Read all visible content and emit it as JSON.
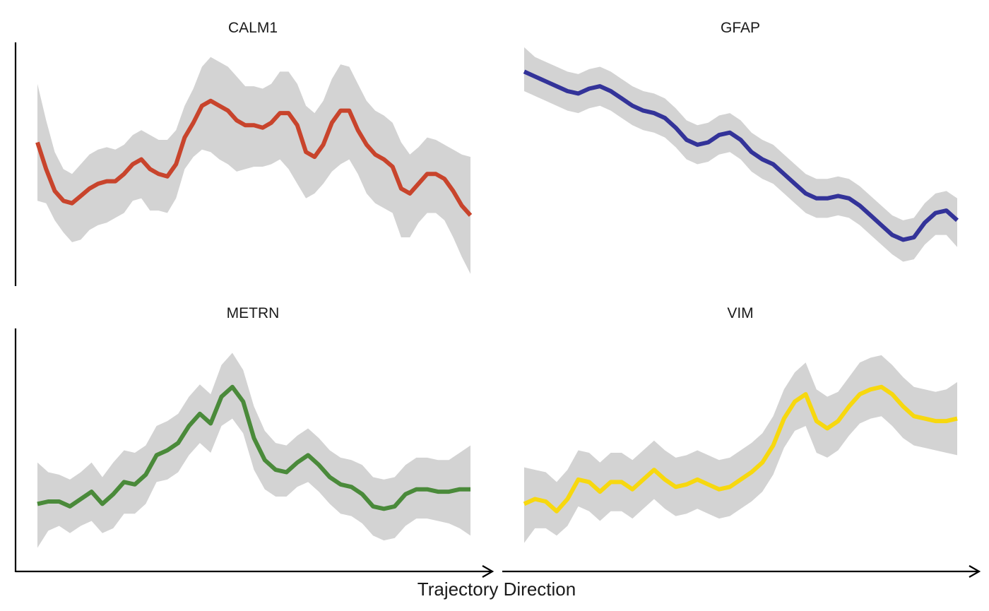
{
  "colors": {
    "ribbon": "#d3d3d3",
    "axis": "#000000"
  },
  "chart_data": {
    "type": "line",
    "xlabel": "Trajectory Direction",
    "ylabel": "",
    "x_range": [
      0,
      1
    ],
    "y_range": [
      0,
      1
    ],
    "legend": "none",
    "grid": false,
    "panels": [
      {
        "title": "CALM1",
        "color": "#c8442c",
        "x": [
          0.0,
          0.02,
          0.04,
          0.06,
          0.08,
          0.1,
          0.12,
          0.14,
          0.16,
          0.18,
          0.2,
          0.22,
          0.24,
          0.26,
          0.28,
          0.3,
          0.32,
          0.34,
          0.36,
          0.38,
          0.4,
          0.42,
          0.44,
          0.46,
          0.48,
          0.5,
          0.52,
          0.54,
          0.56,
          0.58,
          0.6,
          0.62,
          0.64,
          0.66,
          0.68,
          0.7,
          0.72,
          0.74,
          0.76,
          0.78,
          0.8,
          0.82,
          0.84,
          0.86,
          0.88,
          0.9,
          0.92,
          0.94,
          0.96,
          0.98,
          1.0
        ],
        "y": [
          0.59,
          0.48,
          0.39,
          0.35,
          0.34,
          0.37,
          0.4,
          0.42,
          0.43,
          0.43,
          0.46,
          0.5,
          0.52,
          0.48,
          0.46,
          0.45,
          0.5,
          0.61,
          0.67,
          0.74,
          0.76,
          0.74,
          0.72,
          0.68,
          0.66,
          0.66,
          0.65,
          0.67,
          0.71,
          0.71,
          0.66,
          0.55,
          0.53,
          0.58,
          0.67,
          0.72,
          0.72,
          0.64,
          0.58,
          0.54,
          0.52,
          0.49,
          0.4,
          0.38,
          0.42,
          0.46,
          0.46,
          0.44,
          0.39,
          0.33,
          0.29
        ],
        "lower": [
          0.35,
          0.34,
          0.27,
          0.22,
          0.18,
          0.19,
          0.23,
          0.25,
          0.26,
          0.28,
          0.3,
          0.35,
          0.36,
          0.31,
          0.31,
          0.3,
          0.36,
          0.48,
          0.53,
          0.56,
          0.55,
          0.52,
          0.5,
          0.47,
          0.48,
          0.49,
          0.49,
          0.5,
          0.52,
          0.48,
          0.42,
          0.36,
          0.38,
          0.42,
          0.47,
          0.5,
          0.52,
          0.46,
          0.38,
          0.34,
          0.32,
          0.3,
          0.2,
          0.2,
          0.26,
          0.3,
          0.3,
          0.27,
          0.2,
          0.12,
          0.05
        ],
        "upper": [
          0.83,
          0.68,
          0.55,
          0.48,
          0.46,
          0.5,
          0.54,
          0.56,
          0.57,
          0.56,
          0.58,
          0.62,
          0.64,
          0.62,
          0.6,
          0.6,
          0.64,
          0.74,
          0.81,
          0.9,
          0.94,
          0.92,
          0.9,
          0.86,
          0.82,
          0.82,
          0.81,
          0.83,
          0.88,
          0.88,
          0.83,
          0.74,
          0.71,
          0.76,
          0.85,
          0.91,
          0.9,
          0.83,
          0.76,
          0.72,
          0.7,
          0.67,
          0.59,
          0.54,
          0.57,
          0.61,
          0.6,
          0.58,
          0.56,
          0.54,
          0.53
        ]
      },
      {
        "title": "GFAP",
        "color": "#333399",
        "x": [
          0.0,
          0.025,
          0.05,
          0.075,
          0.1,
          0.125,
          0.15,
          0.175,
          0.2,
          0.225,
          0.25,
          0.275,
          0.3,
          0.325,
          0.35,
          0.375,
          0.4,
          0.425,
          0.45,
          0.475,
          0.5,
          0.525,
          0.55,
          0.575,
          0.6,
          0.625,
          0.65,
          0.675,
          0.7,
          0.725,
          0.75,
          0.775,
          0.8,
          0.825,
          0.85,
          0.875,
          0.9,
          0.925,
          0.95,
          0.975,
          1.0
        ],
        "y": [
          0.88,
          0.86,
          0.84,
          0.82,
          0.8,
          0.79,
          0.81,
          0.82,
          0.8,
          0.77,
          0.74,
          0.72,
          0.71,
          0.69,
          0.65,
          0.6,
          0.58,
          0.59,
          0.62,
          0.63,
          0.6,
          0.55,
          0.52,
          0.5,
          0.46,
          0.42,
          0.38,
          0.36,
          0.36,
          0.37,
          0.36,
          0.33,
          0.29,
          0.25,
          0.21,
          0.19,
          0.2,
          0.26,
          0.3,
          0.31,
          0.27
        ],
        "lower": [
          0.8,
          0.78,
          0.76,
          0.74,
          0.72,
          0.71,
          0.73,
          0.74,
          0.72,
          0.69,
          0.66,
          0.64,
          0.63,
          0.61,
          0.57,
          0.52,
          0.5,
          0.51,
          0.54,
          0.55,
          0.52,
          0.47,
          0.44,
          0.42,
          0.38,
          0.34,
          0.3,
          0.28,
          0.28,
          0.29,
          0.28,
          0.25,
          0.21,
          0.17,
          0.13,
          0.1,
          0.11,
          0.17,
          0.21,
          0.21,
          0.16
        ],
        "upper": [
          0.98,
          0.94,
          0.92,
          0.9,
          0.88,
          0.87,
          0.89,
          0.9,
          0.88,
          0.85,
          0.82,
          0.8,
          0.79,
          0.77,
          0.73,
          0.68,
          0.66,
          0.67,
          0.7,
          0.71,
          0.68,
          0.63,
          0.6,
          0.58,
          0.54,
          0.5,
          0.46,
          0.44,
          0.44,
          0.45,
          0.44,
          0.41,
          0.37,
          0.33,
          0.29,
          0.27,
          0.28,
          0.34,
          0.38,
          0.39,
          0.36
        ]
      },
      {
        "title": "METRN",
        "color": "#4a8a3a",
        "x": [
          0.0,
          0.025,
          0.05,
          0.075,
          0.1,
          0.125,
          0.15,
          0.175,
          0.2,
          0.225,
          0.25,
          0.275,
          0.3,
          0.325,
          0.35,
          0.375,
          0.4,
          0.425,
          0.45,
          0.475,
          0.5,
          0.525,
          0.55,
          0.575,
          0.6,
          0.625,
          0.65,
          0.675,
          0.7,
          0.725,
          0.75,
          0.775,
          0.8,
          0.825,
          0.85,
          0.875,
          0.9,
          0.925,
          0.95,
          0.975,
          1.0
        ],
        "y": [
          0.28,
          0.29,
          0.29,
          0.27,
          0.3,
          0.33,
          0.28,
          0.32,
          0.37,
          0.36,
          0.4,
          0.48,
          0.5,
          0.53,
          0.6,
          0.65,
          0.61,
          0.72,
          0.76,
          0.7,
          0.55,
          0.46,
          0.42,
          0.41,
          0.45,
          0.48,
          0.44,
          0.39,
          0.36,
          0.35,
          0.32,
          0.27,
          0.26,
          0.27,
          0.32,
          0.34,
          0.34,
          0.33,
          0.33,
          0.34,
          0.34
        ],
        "lower": [
          0.1,
          0.17,
          0.19,
          0.16,
          0.19,
          0.21,
          0.16,
          0.18,
          0.24,
          0.24,
          0.28,
          0.37,
          0.38,
          0.41,
          0.48,
          0.53,
          0.49,
          0.6,
          0.63,
          0.57,
          0.42,
          0.34,
          0.31,
          0.31,
          0.35,
          0.37,
          0.33,
          0.28,
          0.24,
          0.23,
          0.2,
          0.15,
          0.13,
          0.14,
          0.19,
          0.22,
          0.22,
          0.21,
          0.2,
          0.18,
          0.15
        ],
        "upper": [
          0.45,
          0.41,
          0.4,
          0.38,
          0.41,
          0.45,
          0.39,
          0.45,
          0.5,
          0.49,
          0.52,
          0.6,
          0.62,
          0.65,
          0.72,
          0.77,
          0.73,
          0.85,
          0.9,
          0.83,
          0.68,
          0.58,
          0.53,
          0.52,
          0.56,
          0.59,
          0.55,
          0.5,
          0.47,
          0.46,
          0.44,
          0.39,
          0.38,
          0.39,
          0.44,
          0.47,
          0.47,
          0.46,
          0.46,
          0.49,
          0.52
        ]
      },
      {
        "title": "VIM",
        "color": "#f7d80f",
        "x": [
          0.0,
          0.025,
          0.05,
          0.075,
          0.1,
          0.125,
          0.15,
          0.175,
          0.2,
          0.225,
          0.25,
          0.275,
          0.3,
          0.325,
          0.35,
          0.375,
          0.4,
          0.425,
          0.45,
          0.475,
          0.5,
          0.525,
          0.55,
          0.575,
          0.6,
          0.625,
          0.65,
          0.675,
          0.7,
          0.725,
          0.75,
          0.775,
          0.8,
          0.825,
          0.85,
          0.875,
          0.9,
          0.925,
          0.95,
          0.975,
          1.0
        ],
        "y": [
          0.28,
          0.3,
          0.29,
          0.25,
          0.3,
          0.38,
          0.37,
          0.33,
          0.37,
          0.37,
          0.34,
          0.38,
          0.42,
          0.38,
          0.35,
          0.36,
          0.38,
          0.36,
          0.34,
          0.35,
          0.38,
          0.41,
          0.45,
          0.52,
          0.63,
          0.7,
          0.73,
          0.62,
          0.59,
          0.62,
          0.68,
          0.73,
          0.75,
          0.76,
          0.73,
          0.68,
          0.64,
          0.63,
          0.62,
          0.62,
          0.63
        ],
        "lower": [
          0.12,
          0.18,
          0.18,
          0.15,
          0.19,
          0.27,
          0.25,
          0.21,
          0.25,
          0.25,
          0.22,
          0.26,
          0.3,
          0.26,
          0.23,
          0.24,
          0.26,
          0.24,
          0.22,
          0.23,
          0.26,
          0.29,
          0.33,
          0.4,
          0.51,
          0.58,
          0.6,
          0.49,
          0.47,
          0.5,
          0.56,
          0.61,
          0.63,
          0.64,
          0.6,
          0.55,
          0.52,
          0.51,
          0.5,
          0.49,
          0.48
        ],
        "upper": [
          0.43,
          0.42,
          0.41,
          0.37,
          0.42,
          0.5,
          0.49,
          0.45,
          0.49,
          0.49,
          0.46,
          0.5,
          0.54,
          0.5,
          0.47,
          0.48,
          0.5,
          0.48,
          0.46,
          0.47,
          0.5,
          0.53,
          0.57,
          0.64,
          0.75,
          0.82,
          0.86,
          0.75,
          0.72,
          0.74,
          0.8,
          0.86,
          0.88,
          0.89,
          0.85,
          0.8,
          0.76,
          0.75,
          0.74,
          0.75,
          0.78
        ]
      }
    ]
  }
}
